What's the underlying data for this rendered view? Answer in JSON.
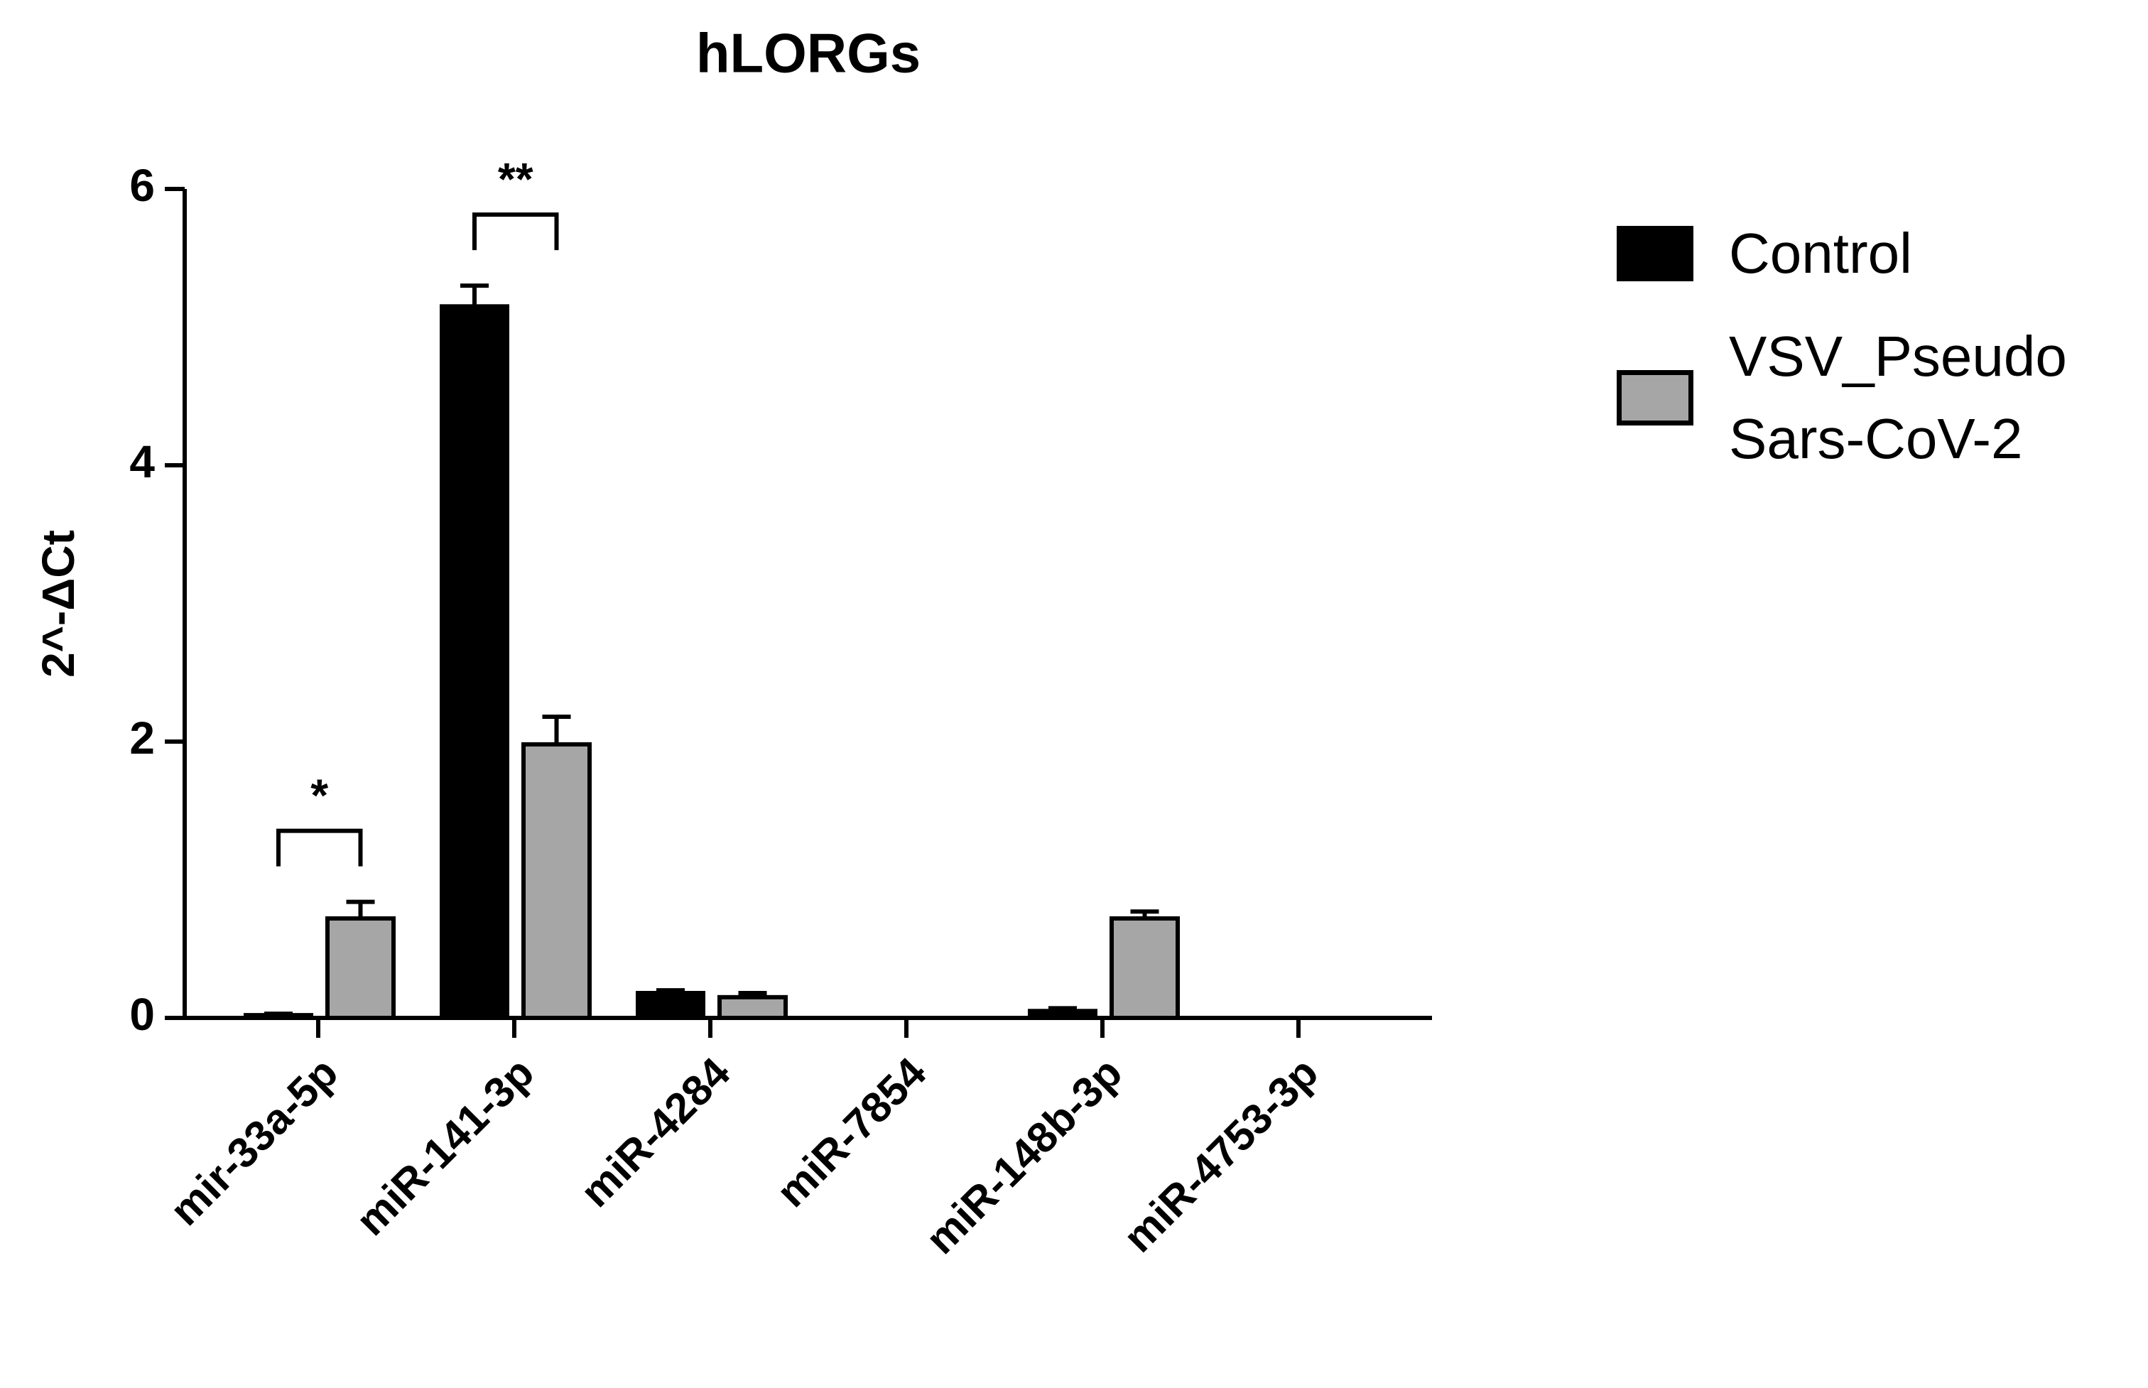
{
  "chart_data": {
    "type": "bar",
    "title": "hLORGs",
    "y_label": "2^-ΔCt",
    "categories": [
      "mir-33a-5p",
      "miR-141-3p",
      "miR-4284",
      "miR-7854",
      "miR-148b-3p",
      "miR-4753-3p"
    ],
    "series": [
      {
        "name": "Control",
        "color": "#000000",
        "values": [
          0.02,
          5.15,
          0.18,
          0,
          0.05,
          0
        ],
        "errors": [
          0.01,
          0.15,
          0.02,
          0,
          0.02,
          0
        ]
      },
      {
        "name": "VSV_Pseudo\nSars-CoV-2",
        "color": "#a6a6a6",
        "values": [
          0.72,
          1.98,
          0.15,
          0,
          0.72,
          0
        ],
        "errors": [
          0.12,
          0.2,
          0.03,
          0,
          0.05,
          0
        ]
      }
    ],
    "annotations": [
      {
        "text": "*",
        "category": "mir-33a-5p"
      },
      {
        "text": "**",
        "category": "miR-141-3p"
      }
    ],
    "ylim": [
      0,
      6
    ],
    "yticks": [
      0,
      2,
      4,
      6
    ],
    "grid": false
  }
}
